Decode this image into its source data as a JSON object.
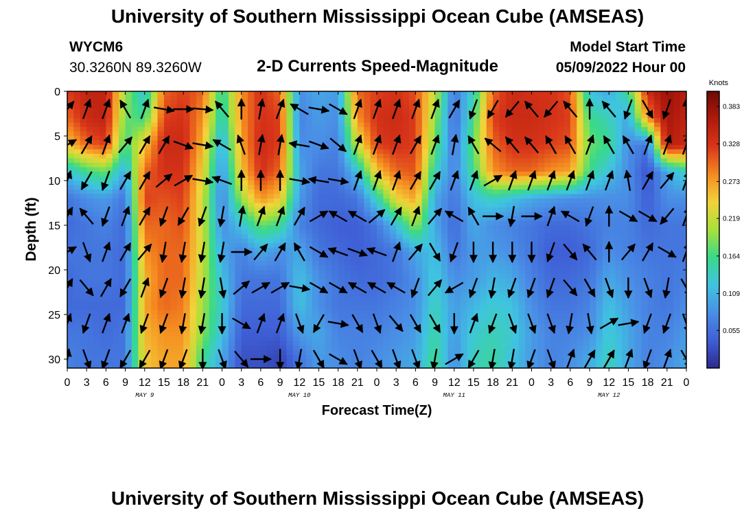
{
  "header": {
    "title": "University of Southern Mississippi Ocean Cube (AMSEAS)",
    "station_id": "WYCM6",
    "station_coords": "30.3260N  89.3260W",
    "chart_subtitle": "2-D Currents Speed-Magnitude",
    "model_start_label": "Model Start Time",
    "model_start_value": "05/09/2022 Hour 00"
  },
  "footer": {
    "title": "University of Southern Mississippi Ocean Cube (AMSEAS)"
  },
  "chart_data": {
    "type": "heatmap",
    "title": "2-D Currents Speed-Magnitude",
    "xlabel": "Forecast Time(Z)",
    "ylabel": "Depth (ft)",
    "x_ticks": [
      "0",
      "3",
      "6",
      "9",
      "12",
      "15",
      "18",
      "21",
      "0",
      "3",
      "6",
      "9",
      "12",
      "15",
      "18",
      "21",
      "0",
      "3",
      "6",
      "9",
      "12",
      "15",
      "18",
      "21",
      "0",
      "3",
      "6",
      "9",
      "12",
      "15",
      "18",
      "21",
      "0"
    ],
    "x_hours": [
      0,
      3,
      6,
      9,
      12,
      15,
      18,
      21,
      24,
      27,
      30,
      33,
      36,
      39,
      42,
      45,
      48,
      51,
      54,
      57,
      60,
      63,
      66,
      69,
      72,
      75,
      78,
      81,
      84,
      87,
      90,
      93,
      96
    ],
    "date_labels": [
      {
        "text": "MAY 9",
        "hour": 12
      },
      {
        "text": "MAY 10",
        "hour": 36
      },
      {
        "text": "MAY 11",
        "hour": 60
      },
      {
        "text": "MAY 12",
        "hour": 84
      }
    ],
    "y_ticks": [
      "0",
      "5",
      "10",
      "15",
      "20",
      "25",
      "30"
    ],
    "y_values": [
      0,
      5,
      10,
      15,
      20,
      25,
      30
    ],
    "xlim": [
      0,
      96
    ],
    "ylim": [
      0,
      31
    ],
    "colorbar": {
      "label": "Knots",
      "ticks": [
        "0.383",
        "0.328",
        "0.273",
        "0.219",
        "0.164",
        "0.109",
        "0.055"
      ],
      "tick_values": [
        0.383,
        0.328,
        0.273,
        0.219,
        0.164,
        0.109,
        0.055
      ],
      "range": [
        0.0,
        0.405
      ],
      "colors": [
        "#2b2b8f",
        "#3f5fd6",
        "#4a8fe6",
        "#3fc4e0",
        "#39d98a",
        "#a8e03a",
        "#f2d33a",
        "#f58a20",
        "#d9361a",
        "#b01a0c",
        "#6e0a05"
      ]
    },
    "speed_grid": {
      "hours": [
        0,
        3,
        6,
        9,
        12,
        15,
        18,
        21,
        24,
        27,
        30,
        33,
        36,
        39,
        42,
        45,
        48,
        51,
        54,
        57,
        60,
        63,
        66,
        69,
        72,
        75,
        78,
        81,
        84,
        87,
        90,
        93,
        96
      ],
      "depths": [
        0,
        3,
        6,
        9,
        12,
        15,
        18,
        21,
        24,
        27,
        30
      ],
      "values": [
        [
          0.32,
          0.3,
          0.25,
          0.12,
          0.06,
          0.05,
          0.06,
          0.05,
          0.05,
          0.06,
          0.07
        ],
        [
          0.35,
          0.34,
          0.3,
          0.16,
          0.08,
          0.06,
          0.06,
          0.06,
          0.05,
          0.06,
          0.06
        ],
        [
          0.35,
          0.35,
          0.32,
          0.18,
          0.09,
          0.07,
          0.06,
          0.06,
          0.05,
          0.05,
          0.06
        ],
        [
          0.2,
          0.18,
          0.16,
          0.1,
          0.06,
          0.05,
          0.05,
          0.05,
          0.05,
          0.06,
          0.06
        ],
        [
          0.12,
          0.16,
          0.25,
          0.3,
          0.32,
          0.3,
          0.28,
          0.26,
          0.27,
          0.26,
          0.25
        ],
        [
          0.3,
          0.32,
          0.34,
          0.33,
          0.31,
          0.3,
          0.3,
          0.3,
          0.3,
          0.28,
          0.27
        ],
        [
          0.32,
          0.33,
          0.34,
          0.33,
          0.32,
          0.31,
          0.3,
          0.3,
          0.29,
          0.28,
          0.27
        ],
        [
          0.3,
          0.28,
          0.26,
          0.24,
          0.22,
          0.22,
          0.22,
          0.21,
          0.2,
          0.19,
          0.16
        ],
        [
          0.15,
          0.13,
          0.1,
          0.08,
          0.07,
          0.08,
          0.1,
          0.12,
          0.13,
          0.12,
          0.1
        ],
        [
          0.28,
          0.28,
          0.27,
          0.25,
          0.2,
          0.12,
          0.07,
          0.06,
          0.05,
          0.04,
          0.03
        ],
        [
          0.33,
          0.33,
          0.34,
          0.33,
          0.28,
          0.18,
          0.1,
          0.06,
          0.05,
          0.04,
          0.03
        ],
        [
          0.3,
          0.32,
          0.32,
          0.3,
          0.25,
          0.16,
          0.08,
          0.06,
          0.05,
          0.04,
          0.02
        ],
        [
          0.08,
          0.07,
          0.08,
          0.1,
          0.09,
          0.07,
          0.1,
          0.12,
          0.12,
          0.09,
          0.06
        ],
        [
          0.1,
          0.09,
          0.08,
          0.06,
          0.05,
          0.05,
          0.06,
          0.08,
          0.08,
          0.1,
          0.09
        ],
        [
          0.09,
          0.08,
          0.07,
          0.06,
          0.05,
          0.04,
          0.05,
          0.06,
          0.06,
          0.07,
          0.08
        ],
        [
          0.3,
          0.28,
          0.22,
          0.12,
          0.06,
          0.04,
          0.04,
          0.05,
          0.06,
          0.07,
          0.07
        ],
        [
          0.32,
          0.33,
          0.32,
          0.25,
          0.14,
          0.06,
          0.05,
          0.05,
          0.06,
          0.07,
          0.08
        ],
        [
          0.33,
          0.34,
          0.33,
          0.3,
          0.24,
          0.12,
          0.06,
          0.06,
          0.07,
          0.08,
          0.09
        ],
        [
          0.31,
          0.32,
          0.32,
          0.31,
          0.27,
          0.2,
          0.1,
          0.08,
          0.08,
          0.09,
          0.1
        ],
        [
          0.22,
          0.2,
          0.18,
          0.14,
          0.1,
          0.1,
          0.12,
          0.13,
          0.14,
          0.15,
          0.16
        ],
        [
          0.06,
          0.05,
          0.06,
          0.07,
          0.06,
          0.05,
          0.06,
          0.08,
          0.09,
          0.09,
          0.08
        ],
        [
          0.14,
          0.16,
          0.18,
          0.16,
          0.12,
          0.1,
          0.09,
          0.09,
          0.11,
          0.13,
          0.14
        ],
        [
          0.3,
          0.32,
          0.3,
          0.28,
          0.14,
          0.08,
          0.09,
          0.11,
          0.13,
          0.14,
          0.15
        ],
        [
          0.34,
          0.34,
          0.33,
          0.3,
          0.12,
          0.07,
          0.08,
          0.1,
          0.12,
          0.13,
          0.12
        ],
        [
          0.33,
          0.34,
          0.33,
          0.3,
          0.1,
          0.06,
          0.06,
          0.07,
          0.08,
          0.09,
          0.09
        ],
        [
          0.33,
          0.33,
          0.32,
          0.28,
          0.09,
          0.05,
          0.04,
          0.05,
          0.06,
          0.07,
          0.07
        ],
        [
          0.31,
          0.32,
          0.31,
          0.27,
          0.08,
          0.05,
          0.04,
          0.05,
          0.06,
          0.07,
          0.08
        ],
        [
          0.12,
          0.16,
          0.18,
          0.16,
          0.08,
          0.06,
          0.05,
          0.06,
          0.07,
          0.08,
          0.1
        ],
        [
          0.1,
          0.14,
          0.16,
          0.12,
          0.08,
          0.07,
          0.08,
          0.1,
          0.12,
          0.13,
          0.14
        ],
        [
          0.16,
          0.1,
          0.08,
          0.08,
          0.08,
          0.07,
          0.07,
          0.08,
          0.09,
          0.1,
          0.1
        ],
        [
          0.34,
          0.28,
          0.06,
          0.03,
          0.04,
          0.05,
          0.06,
          0.07,
          0.07,
          0.07,
          0.07
        ],
        [
          0.38,
          0.37,
          0.36,
          0.1,
          0.08,
          0.06,
          0.06,
          0.06,
          0.06,
          0.07,
          0.08
        ],
        [
          0.36,
          0.35,
          0.34,
          0.14,
          0.08,
          0.06,
          0.06,
          0.07,
          0.08,
          0.09,
          0.1
        ]
      ]
    },
    "vectors": {
      "hours": [
        0,
        3,
        6,
        9,
        12,
        15,
        18,
        21,
        24,
        27,
        30,
        33,
        36,
        39,
        42,
        45,
        48,
        51,
        54,
        57,
        60,
        63,
        66,
        69,
        72,
        75,
        78,
        81,
        84,
        87,
        90,
        93,
        96
      ],
      "depths": [
        2,
        6,
        10,
        14,
        18,
        22,
        26,
        30
      ],
      "angles_deg": [
        [
          40,
          60,
          20,
          30,
          60,
          30,
          20,
          10
        ],
        [
          20,
          30,
          210,
          320,
          160,
          140,
          200,
          160
        ],
        [
          20,
          20,
          200,
          200,
          20,
          30,
          20,
          200
        ],
        [
          330,
          40,
          30,
          20,
          30,
          210,
          20,
          210
        ],
        [
          20,
          30,
          30,
          30,
          40,
          20,
          200,
          210
        ],
        [
          100,
          30,
          50,
          200,
          190,
          200,
          200,
          200
        ],
        [
          90,
          110,
          60,
          210,
          190,
          190,
          190,
          200
        ],
        [
          95,
          100,
          100,
          200,
          190,
          190,
          190,
          180
        ],
        [
          320,
          300,
          290,
          190,
          190,
          170,
          180,
          160
        ],
        [
          0,
          340,
          0,
          10,
          90,
          50,
          120,
          140
        ],
        [
          10,
          10,
          0,
          20,
          40,
          60,
          20,
          90
        ],
        [
          20,
          10,
          0,
          20,
          30,
          60,
          20,
          180
        ],
        [
          300,
          280,
          100,
          30,
          330,
          100,
          160,
          190
        ],
        [
          100,
          110,
          280,
          60,
          120,
          120,
          210,
          150
        ],
        [
          120,
          130,
          100,
          300,
          290,
          120,
          100,
          120
        ],
        [
          20,
          20,
          20,
          300,
          110,
          300,
          150,
          160
        ],
        [
          20,
          20,
          20,
          50,
          290,
          300,
          160,
          150
        ],
        [
          20,
          20,
          20,
          30,
          20,
          300,
          140,
          160
        ],
        [
          20,
          30,
          30,
          20,
          40,
          200,
          150,
          160
        ],
        [
          20,
          20,
          30,
          40,
          150,
          40,
          150,
          190
        ],
        [
          30,
          10,
          20,
          300,
          200,
          240,
          180,
          60
        ],
        [
          200,
          330,
          20,
          330,
          180,
          200,
          20,
          210
        ],
        [
          210,
          310,
          60,
          90,
          180,
          190,
          200,
          190
        ],
        [
          220,
          320,
          20,
          190,
          180,
          200,
          160,
          190
        ],
        [
          320,
          320,
          20,
          90,
          180,
          200,
          160,
          200
        ],
        [
          220,
          330,
          20,
          20,
          200,
          200,
          160,
          160
        ],
        [
          320,
          330,
          20,
          300,
          140,
          140,
          190,
          20
        ],
        [
          0,
          20,
          20,
          200,
          320,
          150,
          170,
          30
        ],
        [
          320,
          330,
          20,
          0,
          0,
          160,
          60,
          30
        ],
        [
          200,
          330,
          350,
          120,
          40,
          180,
          80,
          20
        ],
        [
          150,
          20,
          30,
          120,
          30,
          160,
          200,
          200
        ],
        [
          200,
          20,
          40,
          220,
          120,
          190,
          200,
          20
        ],
        [
          0,
          20,
          20,
          20,
          20,
          150,
          160,
          150
        ]
      ]
    }
  }
}
